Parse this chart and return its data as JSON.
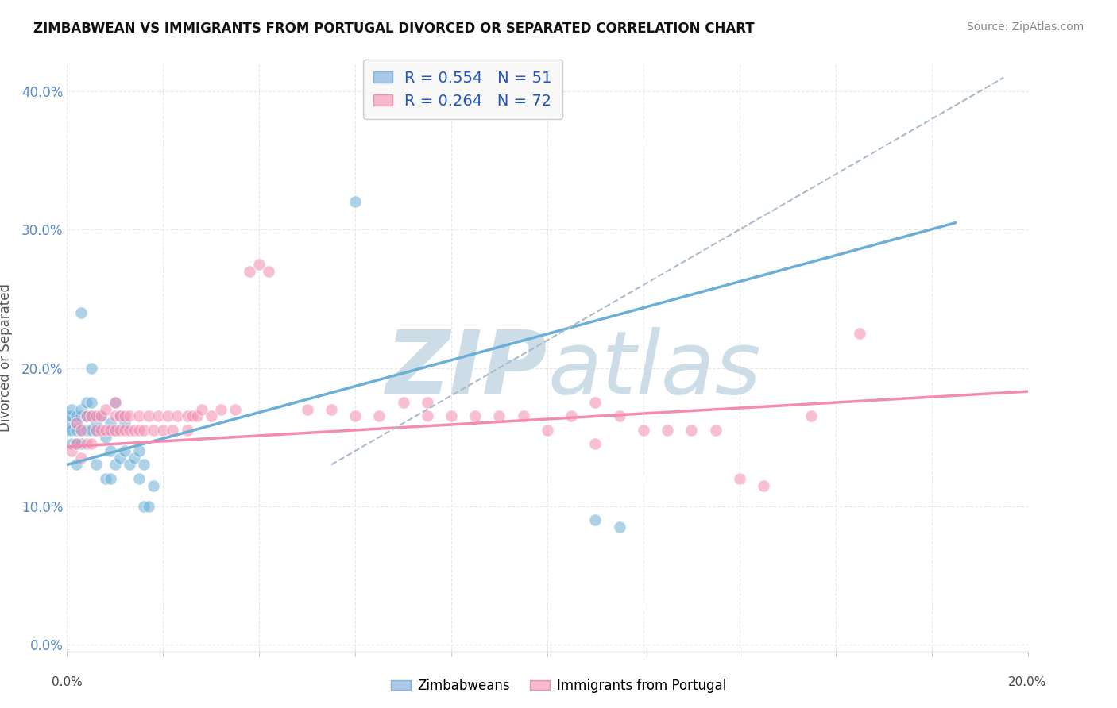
{
  "title": "ZIMBABWEAN VS IMMIGRANTS FROM PORTUGAL DIVORCED OR SEPARATED CORRELATION CHART",
  "source": "Source: ZipAtlas.com",
  "ylabel": "Divorced or Separated",
  "xlim": [
    0.0,
    0.2
  ],
  "ylim": [
    -0.005,
    0.42
  ],
  "yticks": [
    0.0,
    0.1,
    0.2,
    0.3,
    0.4
  ],
  "ytick_labels": [
    "0.0%",
    "10.0%",
    "20.0%",
    "30.0%",
    "40.0%"
  ],
  "xticks": [
    0.0,
    0.02,
    0.04,
    0.06,
    0.08,
    0.1,
    0.12,
    0.14,
    0.16,
    0.18,
    0.2
  ],
  "xtick_end_labels": [
    "0.0%",
    "20.0%"
  ],
  "zimbabwe_color": "#6baed6",
  "portugal_color": "#f48cb1",
  "zimbabwe_scatter": [
    [
      0.0,
      0.155
    ],
    [
      0.0,
      0.16
    ],
    [
      0.0,
      0.165
    ],
    [
      0.001,
      0.145
    ],
    [
      0.001,
      0.155
    ],
    [
      0.001,
      0.165
    ],
    [
      0.001,
      0.17
    ],
    [
      0.002,
      0.13
    ],
    [
      0.002,
      0.145
    ],
    [
      0.002,
      0.155
    ],
    [
      0.002,
      0.16
    ],
    [
      0.002,
      0.165
    ],
    [
      0.003,
      0.145
    ],
    [
      0.003,
      0.155
    ],
    [
      0.003,
      0.165
    ],
    [
      0.003,
      0.17
    ],
    [
      0.003,
      0.24
    ],
    [
      0.004,
      0.155
    ],
    [
      0.004,
      0.165
    ],
    [
      0.004,
      0.175
    ],
    [
      0.005,
      0.155
    ],
    [
      0.005,
      0.165
    ],
    [
      0.005,
      0.175
    ],
    [
      0.005,
      0.2
    ],
    [
      0.006,
      0.13
    ],
    [
      0.006,
      0.155
    ],
    [
      0.006,
      0.16
    ],
    [
      0.007,
      0.165
    ],
    [
      0.008,
      0.12
    ],
    [
      0.008,
      0.15
    ],
    [
      0.009,
      0.12
    ],
    [
      0.009,
      0.14
    ],
    [
      0.009,
      0.16
    ],
    [
      0.01,
      0.13
    ],
    [
      0.01,
      0.155
    ],
    [
      0.01,
      0.175
    ],
    [
      0.011,
      0.135
    ],
    [
      0.011,
      0.165
    ],
    [
      0.012,
      0.14
    ],
    [
      0.012,
      0.16
    ],
    [
      0.013,
      0.13
    ],
    [
      0.014,
      0.135
    ],
    [
      0.015,
      0.12
    ],
    [
      0.015,
      0.14
    ],
    [
      0.016,
      0.1
    ],
    [
      0.016,
      0.13
    ],
    [
      0.017,
      0.1
    ],
    [
      0.018,
      0.115
    ],
    [
      0.06,
      0.32
    ],
    [
      0.11,
      0.09
    ],
    [
      0.115,
      0.085
    ]
  ],
  "portugal_scatter": [
    [
      0.001,
      0.14
    ],
    [
      0.002,
      0.145
    ],
    [
      0.002,
      0.16
    ],
    [
      0.003,
      0.135
    ],
    [
      0.003,
      0.155
    ],
    [
      0.004,
      0.145
    ],
    [
      0.004,
      0.165
    ],
    [
      0.005,
      0.145
    ],
    [
      0.005,
      0.165
    ],
    [
      0.006,
      0.155
    ],
    [
      0.006,
      0.165
    ],
    [
      0.007,
      0.155
    ],
    [
      0.007,
      0.165
    ],
    [
      0.008,
      0.155
    ],
    [
      0.008,
      0.17
    ],
    [
      0.009,
      0.155
    ],
    [
      0.01,
      0.155
    ],
    [
      0.01,
      0.165
    ],
    [
      0.01,
      0.175
    ],
    [
      0.011,
      0.155
    ],
    [
      0.011,
      0.165
    ],
    [
      0.012,
      0.155
    ],
    [
      0.012,
      0.165
    ],
    [
      0.013,
      0.155
    ],
    [
      0.013,
      0.165
    ],
    [
      0.014,
      0.155
    ],
    [
      0.015,
      0.155
    ],
    [
      0.015,
      0.165
    ],
    [
      0.016,
      0.155
    ],
    [
      0.017,
      0.165
    ],
    [
      0.018,
      0.155
    ],
    [
      0.019,
      0.165
    ],
    [
      0.02,
      0.155
    ],
    [
      0.021,
      0.165
    ],
    [
      0.022,
      0.155
    ],
    [
      0.023,
      0.165
    ],
    [
      0.025,
      0.155
    ],
    [
      0.025,
      0.165
    ],
    [
      0.026,
      0.165
    ],
    [
      0.027,
      0.165
    ],
    [
      0.028,
      0.17
    ],
    [
      0.03,
      0.165
    ],
    [
      0.032,
      0.17
    ],
    [
      0.035,
      0.17
    ],
    [
      0.038,
      0.27
    ],
    [
      0.04,
      0.275
    ],
    [
      0.042,
      0.27
    ],
    [
      0.05,
      0.17
    ],
    [
      0.055,
      0.17
    ],
    [
      0.06,
      0.165
    ],
    [
      0.065,
      0.165
    ],
    [
      0.07,
      0.175
    ],
    [
      0.075,
      0.165
    ],
    [
      0.075,
      0.175
    ],
    [
      0.08,
      0.165
    ],
    [
      0.085,
      0.165
    ],
    [
      0.09,
      0.165
    ],
    [
      0.095,
      0.165
    ],
    [
      0.1,
      0.155
    ],
    [
      0.105,
      0.165
    ],
    [
      0.11,
      0.145
    ],
    [
      0.11,
      0.175
    ],
    [
      0.115,
      0.165
    ],
    [
      0.12,
      0.155
    ],
    [
      0.125,
      0.155
    ],
    [
      0.13,
      0.155
    ],
    [
      0.135,
      0.155
    ],
    [
      0.14,
      0.12
    ],
    [
      0.145,
      0.115
    ],
    [
      0.155,
      0.165
    ],
    [
      0.165,
      0.225
    ]
  ],
  "zim_line": {
    "x0": 0.0,
    "x1": 0.185,
    "y0": 0.13,
    "y1": 0.305
  },
  "port_line": {
    "x0": 0.0,
    "x1": 0.2,
    "y0": 0.143,
    "y1": 0.183
  },
  "ref_line": {
    "x0": 0.055,
    "x1": 0.195,
    "y0": 0.13,
    "y1": 0.41
  },
  "background_color": "#ffffff",
  "grid_color": "#e8e8e8",
  "grid_style": "--",
  "watermark_color": "#ccdde8"
}
